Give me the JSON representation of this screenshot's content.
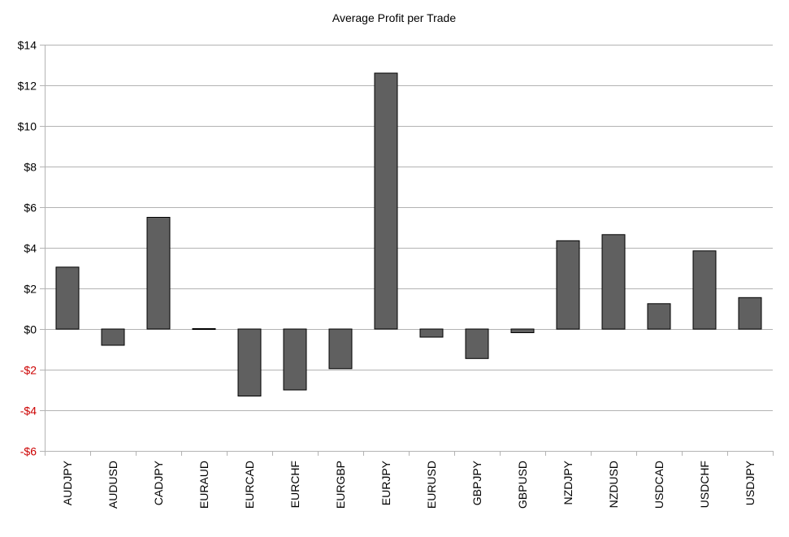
{
  "chart_data": {
    "type": "bar",
    "title": "Average Profit per Trade",
    "xlabel": "",
    "ylabel": "",
    "categories": [
      "AUDJPY",
      "AUDUSD",
      "CADJPY",
      "EURAUD",
      "EURCAD",
      "EURCHF",
      "EURGBP",
      "EURJPY",
      "EURUSD",
      "GBPJPY",
      "GBPUSD",
      "NZDJPY",
      "NZDUSD",
      "USDCAD",
      "USDCHF",
      "USDJPY"
    ],
    "values": [
      3.05,
      -0.8,
      5.5,
      0.02,
      -3.3,
      -3.0,
      -1.95,
      12.6,
      -0.4,
      -1.45,
      -0.18,
      4.35,
      4.65,
      1.25,
      3.85,
      1.55
    ],
    "ylim": [
      -6,
      14
    ],
    "yticks": [
      14,
      12,
      10,
      8,
      6,
      4,
      2,
      0,
      -2,
      -4,
      -6
    ],
    "ytick_labels": [
      "$14",
      "$12",
      "$10",
      "$8",
      "$6",
      "$4",
      "$2",
      "$0",
      "-$2",
      "-$4",
      "-$6"
    ],
    "grid": true,
    "colors": {
      "bar": "#606060",
      "bar_border": "#000000",
      "grid": "#b3b3b3",
      "positive_label": "#000000",
      "negative_label": "#cc0000"
    }
  }
}
